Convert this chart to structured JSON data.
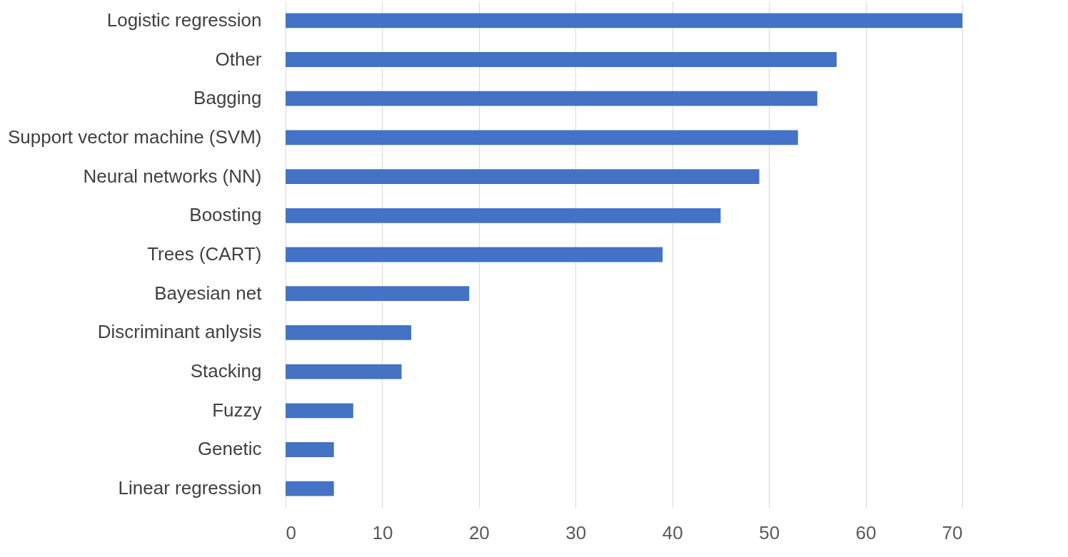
{
  "chart_data": {
    "type": "bar",
    "orientation": "horizontal",
    "categories": [
      "Logistic regression",
      "Other",
      "Bagging",
      "Support vector machine (SVM)",
      "Neural networks (NN)",
      "Boosting",
      "Trees (CART)",
      "Bayesian net",
      "Discriminant anlysis",
      "Stacking",
      "Fuzzy",
      "Genetic",
      "Linear regression"
    ],
    "values": [
      70,
      57,
      55,
      53,
      49,
      45,
      39,
      19,
      13,
      12,
      7,
      5,
      5
    ],
    "color": "#4472c4",
    "xlim": [
      0,
      70
    ],
    "xticks": [
      0,
      10,
      20,
      30,
      40,
      50,
      60,
      70
    ],
    "grid": "x"
  }
}
